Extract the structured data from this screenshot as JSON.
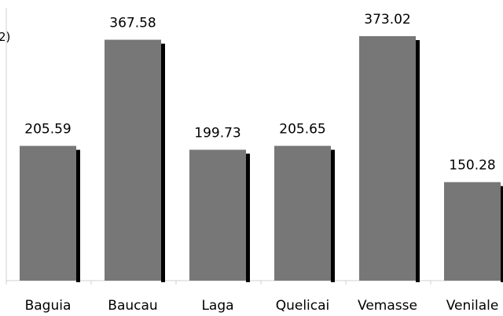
{
  "chart_data": {
    "type": "bar",
    "categories": [
      "Baguia",
      "Baucau",
      "Laga",
      "Quelicai",
      "Vemasse",
      "Venilale"
    ],
    "values": [
      205.59,
      367.58,
      199.73,
      205.65,
      373.02,
      150.28
    ],
    "data_labels": [
      "205.59",
      "367.58",
      "199.73",
      "205.65",
      "373.02",
      "150.28"
    ],
    "title": "",
    "xlabel": "",
    "ylabel": "2)",
    "ylim": [
      0,
      400
    ],
    "grid": false,
    "legend": "none",
    "colors": {
      "bar": "#777777",
      "bar_shadow": "#000000",
      "axis": "#d0d0d0",
      "text": "#000000"
    }
  }
}
